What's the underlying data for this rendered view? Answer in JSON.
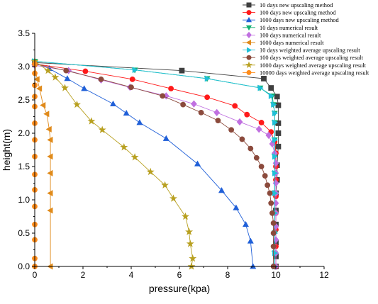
{
  "chart_data": {
    "type": "line",
    "xlabel": "pressure(kpa)",
    "ylabel": "height(m)",
    "xlim": [
      0,
      12
    ],
    "ylim": [
      0,
      3.5
    ],
    "xticks": [
      "0",
      "2",
      "4",
      "6",
      "8",
      "10",
      "12"
    ],
    "yticks": [
      "0.0",
      "0.5",
      "1.0",
      "1.5",
      "2.0",
      "2.5",
      "3.0",
      "3.5"
    ],
    "grid": false,
    "legend_position": "top-right",
    "series": [
      {
        "name": "10 days new upscaling method",
        "color": "#3f3f3f",
        "marker": "square",
        "points": [
          [
            0.0,
            3.06
          ],
          [
            6.1,
            2.94
          ],
          [
            9.5,
            2.82
          ],
          [
            9.8,
            2.68
          ],
          [
            10.05,
            2.55
          ],
          [
            10.1,
            2.42
          ],
          [
            10.1,
            2.15
          ],
          [
            10.1,
            2.0
          ],
          [
            10.1,
            1.8
          ],
          [
            10.05,
            1.52
          ],
          [
            10.05,
            1.3
          ],
          [
            10.0,
            1.1
          ],
          [
            10.0,
            0.84
          ],
          [
            10.0,
            0.63
          ],
          [
            10.0,
            0.36
          ],
          [
            10.0,
            0.15
          ],
          [
            10.0,
            0.0
          ]
        ]
      },
      {
        "name": "100 days new upscaling method",
        "color": "#ff1a1a",
        "marker": "circle",
        "points": [
          [
            0.0,
            3.04
          ],
          [
            2.1,
            2.93
          ],
          [
            4.05,
            2.81
          ],
          [
            5.65,
            2.67
          ],
          [
            7.15,
            2.54
          ],
          [
            8.3,
            2.41
          ],
          [
            8.8,
            2.28
          ],
          [
            9.4,
            2.16
          ],
          [
            9.8,
            2.02
          ],
          [
            9.95,
            1.87
          ],
          [
            10.0,
            1.7
          ],
          [
            10.0,
            1.5
          ],
          [
            10.0,
            1.3
          ],
          [
            10.0,
            1.05
          ],
          [
            10.0,
            0.8
          ],
          [
            10.0,
            0.55
          ],
          [
            10.0,
            0.3
          ],
          [
            10.0,
            0.0
          ]
        ]
      },
      {
        "name": "1000 days new upscaling method",
        "color": "#1f5fd8",
        "marker": "triangle-up",
        "points": [
          [
            0.0,
            3.06
          ],
          [
            0.6,
            2.97
          ],
          [
            1.35,
            2.82
          ],
          [
            2.05,
            2.67
          ],
          [
            3.25,
            2.44
          ],
          [
            3.8,
            2.3
          ],
          [
            4.35,
            2.16
          ],
          [
            5.45,
            1.92
          ],
          [
            6.75,
            1.54
          ],
          [
            7.75,
            1.14
          ],
          [
            8.35,
            0.88
          ],
          [
            8.75,
            0.63
          ],
          [
            8.95,
            0.38
          ],
          [
            9.05,
            0.0
          ]
        ]
      },
      {
        "name": "10 days numerical result",
        "color": "#10b070",
        "marker": "triangle-down",
        "points": [
          [
            0.0,
            3.08
          ],
          [
            4.15,
            2.95
          ],
          [
            7.15,
            2.82
          ],
          [
            9.35,
            2.68
          ],
          [
            9.85,
            2.56
          ],
          [
            9.9,
            2.43
          ],
          [
            9.95,
            2.3
          ],
          [
            9.95,
            2.16
          ],
          [
            9.95,
            1.9
          ],
          [
            9.95,
            1.65
          ],
          [
            9.95,
            1.4
          ],
          [
            9.95,
            1.1
          ],
          [
            9.95,
            0.8
          ],
          [
            9.95,
            0.5
          ],
          [
            9.95,
            0.2
          ],
          [
            9.95,
            0.0
          ]
        ]
      },
      {
        "name": "100 days numerical result",
        "color": "#c070e0",
        "marker": "diamond",
        "points": [
          [
            0.0,
            3.02
          ],
          [
            1.4,
            2.94
          ],
          [
            2.75,
            2.8
          ],
          [
            3.95,
            2.69
          ],
          [
            5.45,
            2.56
          ],
          [
            6.6,
            2.44
          ],
          [
            7.55,
            2.31
          ],
          [
            8.5,
            2.17
          ],
          [
            9.3,
            2.06
          ],
          [
            9.7,
            1.97
          ],
          [
            9.85,
            1.84
          ],
          [
            9.95,
            1.7
          ],
          [
            10.0,
            1.55
          ],
          [
            10.0,
            1.4
          ],
          [
            10.0,
            1.25
          ],
          [
            10.0,
            1.1
          ],
          [
            10.0,
            0.95
          ],
          [
            10.0,
            0.8
          ],
          [
            10.0,
            0.6
          ],
          [
            10.0,
            0.4
          ],
          [
            10.0,
            0.2
          ],
          [
            10.0,
            0.0
          ]
        ]
      },
      {
        "name": "1000 days numerical result",
        "color": "#e08a1a",
        "marker": "triangle-left",
        "points": [
          [
            0.0,
            3.04
          ],
          [
            0.1,
            2.81
          ],
          [
            0.2,
            2.67
          ],
          [
            0.35,
            2.42
          ],
          [
            0.5,
            2.29
          ],
          [
            0.6,
            2.06
          ],
          [
            0.65,
            1.9
          ],
          [
            0.65,
            1.65
          ],
          [
            0.65,
            1.4
          ],
          [
            0.65,
            1.1
          ],
          [
            0.65,
            0.84
          ],
          [
            0.65,
            0.0
          ]
        ]
      },
      {
        "name": "10 days weighted average upscaling result",
        "color": "#20c0d8",
        "marker": "triangle-right",
        "points": [
          [
            0.0,
            3.08
          ],
          [
            4.15,
            2.95
          ],
          [
            7.15,
            2.82
          ],
          [
            9.35,
            2.68
          ],
          [
            9.8,
            2.56
          ],
          [
            9.9,
            2.43
          ],
          [
            9.95,
            2.3
          ],
          [
            9.95,
            2.16
          ],
          [
            9.95,
            1.9
          ],
          [
            9.95,
            1.65
          ],
          [
            9.95,
            1.4
          ],
          [
            9.95,
            1.1
          ],
          [
            9.95,
            0.8
          ],
          [
            9.95,
            0.5
          ],
          [
            9.95,
            0.2
          ],
          [
            9.95,
            0.0
          ]
        ]
      },
      {
        "name": "100 days weighted average upscaling result",
        "color": "#8b4a3c",
        "marker": "circle",
        "points": [
          [
            0.0,
            3.04
          ],
          [
            1.3,
            2.94
          ],
          [
            2.75,
            2.81
          ],
          [
            4.0,
            2.69
          ],
          [
            5.3,
            2.56
          ],
          [
            6.15,
            2.43
          ],
          [
            6.9,
            2.31
          ],
          [
            7.6,
            2.19
          ],
          [
            8.15,
            2.05
          ],
          [
            8.6,
            1.91
          ],
          [
            8.95,
            1.77
          ],
          [
            9.2,
            1.63
          ],
          [
            9.4,
            1.5
          ],
          [
            9.55,
            1.36
          ],
          [
            9.65,
            1.22
          ],
          [
            9.75,
            1.1
          ],
          [
            9.8,
            0.95
          ],
          [
            9.85,
            0.8
          ],
          [
            9.9,
            0.65
          ],
          [
            9.9,
            0.5
          ],
          [
            9.9,
            0.3
          ],
          [
            9.9,
            0.0
          ]
        ]
      },
      {
        "name": "1000 days weighted average upscaling result",
        "color": "#b8a020",
        "marker": "star",
        "points": [
          [
            0.0,
            3.08
          ],
          [
            0.55,
            2.94
          ],
          [
            0.85,
            2.84
          ],
          [
            1.25,
            2.68
          ],
          [
            1.75,
            2.43
          ],
          [
            2.35,
            2.18
          ],
          [
            2.8,
            2.05
          ],
          [
            3.7,
            1.79
          ],
          [
            4.15,
            1.64
          ],
          [
            4.8,
            1.42
          ],
          [
            5.4,
            1.22
          ],
          [
            5.75,
            1.02
          ],
          [
            6.25,
            0.75
          ],
          [
            6.4,
            0.52
          ],
          [
            6.45,
            0.34
          ],
          [
            6.55,
            0.12
          ],
          [
            6.5,
            0.0
          ]
        ]
      },
      {
        "name": "10000 days weighted average upscaling result",
        "color": "#ff8c1a",
        "marker": "circle",
        "points": [
          [
            0.0,
            3.04
          ],
          [
            0.0,
            2.9
          ],
          [
            0.0,
            2.72
          ],
          [
            0.0,
            2.55
          ],
          [
            0.0,
            2.4
          ],
          [
            0.0,
            2.15
          ],
          [
            0.0,
            1.9
          ],
          [
            0.0,
            1.65
          ],
          [
            0.0,
            1.38
          ],
          [
            0.0,
            1.15
          ],
          [
            0.0,
            0.9
          ],
          [
            0.0,
            0.63
          ],
          [
            0.0,
            0.4
          ],
          [
            0.0,
            0.12
          ],
          [
            0.0,
            0.0
          ]
        ]
      }
    ]
  }
}
